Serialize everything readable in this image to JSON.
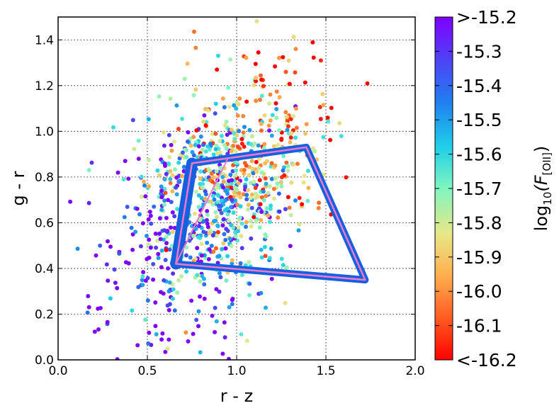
{
  "chart_data": {
    "type": "scatter",
    "title": "",
    "xlabel": "r - z",
    "ylabel": "g - r",
    "xlim": [
      0.0,
      2.0
    ],
    "ylim": [
      0.0,
      1.5
    ],
    "xticks": [
      "0.0",
      "0.5",
      "1.0",
      "1.5",
      "2.0"
    ],
    "yticks": [
      "0.0",
      "0.2",
      "0.4",
      "0.6",
      "0.8",
      "1.0",
      "1.2",
      "1.4"
    ],
    "grid": true,
    "colorbar": {
      "label": "log10(F[OII])",
      "label_main": "log",
      "label_sub": "10",
      "label_paren_open": "(F",
      "label_sub2": "[OII]",
      "label_paren_close": ")",
      "ticks": [
        ">-15.2",
        "-15.3",
        "-15.4",
        "-15.5",
        "-15.6",
        "-15.7",
        "-15.8",
        "-15.9",
        "-16.0",
        "-16.1",
        "<-16.2"
      ],
      "range": [
        -16.2,
        -15.2
      ],
      "colormap": "rainbow"
    },
    "selection_box": {
      "vertices": [
        [
          0.75,
          0.86
        ],
        [
          1.39,
          0.93
        ],
        [
          1.72,
          0.35
        ],
        [
          0.66,
          0.42
        ]
      ],
      "edge_color": "#1560e0",
      "inner_color": "#f078c8",
      "diagonal": [
        [
          0.66,
          0.42
        ],
        [
          0.95,
          0.88
        ]
      ]
    },
    "points_generated": true,
    "points_count": 950,
    "points_note": "scatter of galaxy colors; dense cloud centered near r-z=0.85, g-r=0.8"
  }
}
